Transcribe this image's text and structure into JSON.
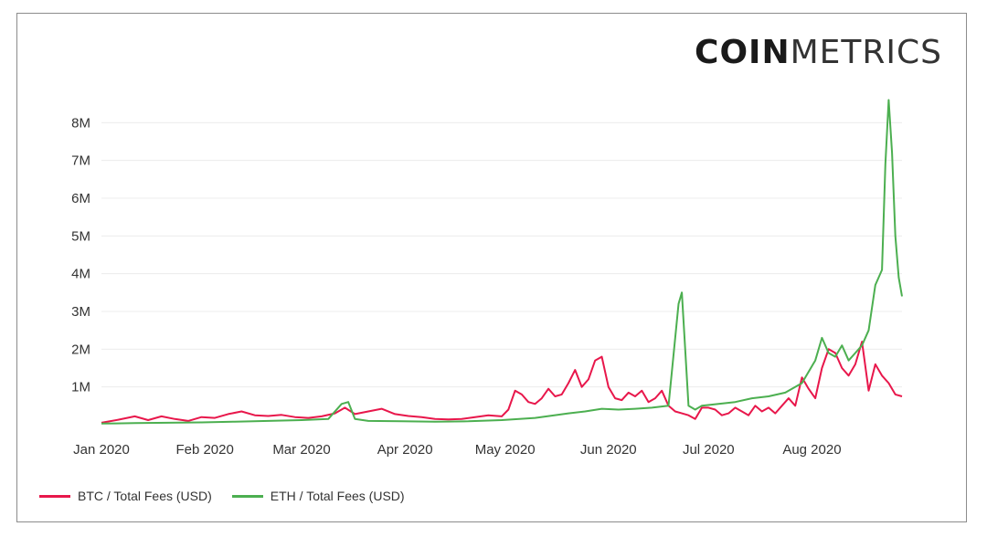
{
  "logo": {
    "bold": "COIN",
    "light": "METRICS"
  },
  "chart_data": {
    "type": "line",
    "xlabel": "",
    "ylabel": "",
    "y_ticks": [
      "1M",
      "2M",
      "3M",
      "4M",
      "5M",
      "6M",
      "7M",
      "8M"
    ],
    "y_tick_values": [
      1000000,
      2000000,
      3000000,
      4000000,
      5000000,
      6000000,
      7000000,
      8000000
    ],
    "x_ticks": [
      "Jan 2020",
      "Feb 2020",
      "Mar 2020",
      "Apr 2020",
      "May 2020",
      "Jun 2020",
      "Jul 2020",
      "Aug 2020"
    ],
    "x_tick_days": [
      0,
      31,
      60,
      91,
      121,
      152,
      182,
      213
    ],
    "ylim": [
      0,
      9000000
    ],
    "x_range_days": [
      0,
      240
    ],
    "grid": true,
    "legend": "bottom-left",
    "series": [
      {
        "name": "BTC / Total Fees (USD)",
        "color": "#e8174b",
        "points": [
          [
            0,
            50000
          ],
          [
            5,
            130000
          ],
          [
            10,
            220000
          ],
          [
            14,
            120000
          ],
          [
            18,
            220000
          ],
          [
            22,
            150000
          ],
          [
            26,
            100000
          ],
          [
            30,
            200000
          ],
          [
            34,
            180000
          ],
          [
            38,
            280000
          ],
          [
            42,
            350000
          ],
          [
            46,
            250000
          ],
          [
            50,
            230000
          ],
          [
            54,
            260000
          ],
          [
            58,
            200000
          ],
          [
            62,
            180000
          ],
          [
            66,
            220000
          ],
          [
            70,
            300000
          ],
          [
            73,
            450000
          ],
          [
            76,
            280000
          ],
          [
            80,
            350000
          ],
          [
            84,
            420000
          ],
          [
            88,
            280000
          ],
          [
            92,
            230000
          ],
          [
            96,
            200000
          ],
          [
            100,
            150000
          ],
          [
            104,
            140000
          ],
          [
            108,
            150000
          ],
          [
            112,
            200000
          ],
          [
            116,
            250000
          ],
          [
            120,
            220000
          ],
          [
            122,
            400000
          ],
          [
            124,
            900000
          ],
          [
            126,
            800000
          ],
          [
            128,
            600000
          ],
          [
            130,
            550000
          ],
          [
            132,
            700000
          ],
          [
            134,
            950000
          ],
          [
            136,
            750000
          ],
          [
            138,
            800000
          ],
          [
            140,
            1100000
          ],
          [
            142,
            1450000
          ],
          [
            144,
            1000000
          ],
          [
            146,
            1200000
          ],
          [
            148,
            1700000
          ],
          [
            150,
            1800000
          ],
          [
            152,
            1000000
          ],
          [
            154,
            700000
          ],
          [
            156,
            650000
          ],
          [
            158,
            850000
          ],
          [
            160,
            750000
          ],
          [
            162,
            900000
          ],
          [
            164,
            600000
          ],
          [
            166,
            700000
          ],
          [
            168,
            900000
          ],
          [
            170,
            500000
          ],
          [
            172,
            350000
          ],
          [
            174,
            300000
          ],
          [
            176,
            250000
          ],
          [
            178,
            150000
          ],
          [
            180,
            450000
          ],
          [
            182,
            450000
          ],
          [
            184,
            400000
          ],
          [
            186,
            250000
          ],
          [
            188,
            300000
          ],
          [
            190,
            450000
          ],
          [
            192,
            350000
          ],
          [
            194,
            250000
          ],
          [
            196,
            500000
          ],
          [
            198,
            350000
          ],
          [
            200,
            450000
          ],
          [
            202,
            300000
          ],
          [
            204,
            500000
          ],
          [
            206,
            700000
          ],
          [
            208,
            500000
          ],
          [
            210,
            1250000
          ],
          [
            212,
            950000
          ],
          [
            214,
            700000
          ],
          [
            216,
            1500000
          ],
          [
            218,
            2000000
          ],
          [
            220,
            1900000
          ],
          [
            222,
            1500000
          ],
          [
            224,
            1300000
          ],
          [
            226,
            1600000
          ],
          [
            228,
            2200000
          ],
          [
            230,
            900000
          ],
          [
            232,
            1600000
          ],
          [
            234,
            1300000
          ],
          [
            236,
            1100000
          ],
          [
            238,
            800000
          ],
          [
            240,
            750000
          ]
        ]
      },
      {
        "name": "ETH / Total Fees (USD)",
        "color": "#4caf50",
        "points": [
          [
            0,
            30000
          ],
          [
            10,
            40000
          ],
          [
            20,
            50000
          ],
          [
            30,
            60000
          ],
          [
            40,
            80000
          ],
          [
            50,
            100000
          ],
          [
            60,
            120000
          ],
          [
            68,
            150000
          ],
          [
            72,
            550000
          ],
          [
            74,
            600000
          ],
          [
            76,
            150000
          ],
          [
            80,
            100000
          ],
          [
            90,
            90000
          ],
          [
            100,
            80000
          ],
          [
            110,
            90000
          ],
          [
            120,
            120000
          ],
          [
            130,
            180000
          ],
          [
            140,
            300000
          ],
          [
            145,
            350000
          ],
          [
            150,
            420000
          ],
          [
            155,
            400000
          ],
          [
            160,
            420000
          ],
          [
            165,
            450000
          ],
          [
            170,
            500000
          ],
          [
            173,
            3200000
          ],
          [
            174,
            3500000
          ],
          [
            176,
            500000
          ],
          [
            178,
            400000
          ],
          [
            180,
            500000
          ],
          [
            185,
            550000
          ],
          [
            190,
            600000
          ],
          [
            195,
            700000
          ],
          [
            200,
            750000
          ],
          [
            205,
            850000
          ],
          [
            210,
            1100000
          ],
          [
            214,
            1700000
          ],
          [
            216,
            2300000
          ],
          [
            218,
            1900000
          ],
          [
            220,
            1800000
          ],
          [
            222,
            2100000
          ],
          [
            224,
            1700000
          ],
          [
            226,
            1900000
          ],
          [
            228,
            2100000
          ],
          [
            230,
            2500000
          ],
          [
            232,
            3700000
          ],
          [
            234,
            4100000
          ],
          [
            235,
            6900000
          ],
          [
            236,
            8600000
          ],
          [
            237,
            7200000
          ],
          [
            238,
            5000000
          ],
          [
            239,
            3900000
          ],
          [
            240,
            3400000
          ]
        ]
      }
    ]
  }
}
